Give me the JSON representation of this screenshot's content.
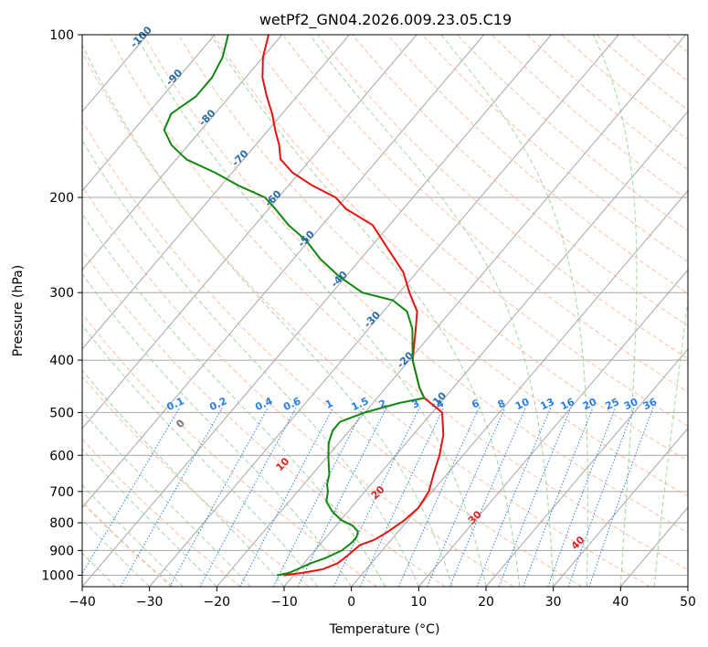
{
  "chart_data": {
    "type": "line",
    "subtype": "skew-T log-P diagram",
    "title": "wetPf2_GN04.2026.009.23.05.C19",
    "xlabel": "Temperature (°C)",
    "ylabel": "Pressure (hPa)",
    "xlim": [
      -40,
      50
    ],
    "ylim_hpa": [
      1050,
      100
    ],
    "x_ticks": [
      -40,
      -30,
      -20,
      -10,
      0,
      10,
      20,
      30,
      40,
      50
    ],
    "x_tick_labels": [
      "−40",
      "−30",
      "−20",
      "−10",
      "0",
      "10",
      "20",
      "30",
      "40",
      "50"
    ],
    "y_ticks": [
      100,
      200,
      300,
      400,
      500,
      600,
      700,
      800,
      900,
      1000
    ],
    "y_tick_labels": [
      "100",
      "200",
      "300",
      "400",
      "500",
      "600",
      "700",
      "800",
      "900",
      "1000"
    ],
    "grid": true,
    "colors": {
      "temperature": "#e8110f",
      "dewpoint": "#118811",
      "isotherms": "#a6a6a6",
      "dry_adiabats": "#f7a582",
      "moist_adiabats": "#8fca8f",
      "mixing_ratio": "#2a7fe0",
      "temp_label": "#2a6ea8",
      "dryad_label": "#d62728",
      "dryad_zero_label": "#777777"
    },
    "series": [
      {
        "name": "Temperature",
        "color": "#e8110f",
        "points": [
          [
            -11.5,
            1000
          ],
          [
            -9.0,
            990
          ],
          [
            -6.5,
            975
          ],
          [
            -5.0,
            950
          ],
          [
            -4.5,
            920
          ],
          [
            -4.0,
            880
          ],
          [
            -2.5,
            860
          ],
          [
            -1.5,
            830
          ],
          [
            -0.5,
            790
          ],
          [
            0.0,
            750
          ],
          [
            -0.5,
            700
          ],
          [
            -2.0,
            650
          ],
          [
            -3.5,
            600
          ],
          [
            -5.5,
            550
          ],
          [
            -8.5,
            500
          ],
          [
            -13.0,
            470
          ],
          [
            -15.0,
            450
          ],
          [
            -19.5,
            400
          ],
          [
            -23.0,
            350
          ],
          [
            -25.0,
            325
          ],
          [
            -28.5,
            300
          ],
          [
            -32.0,
            275
          ],
          [
            -37.0,
            250
          ],
          [
            -42.5,
            225
          ],
          [
            -48.5,
            210
          ],
          [
            -51.5,
            200
          ],
          [
            -56.5,
            190
          ],
          [
            -61.0,
            180
          ],
          [
            -64.5,
            170
          ],
          [
            -66.5,
            160
          ],
          [
            -69.0,
            150
          ],
          [
            -71.5,
            140
          ],
          [
            -74.5,
            130
          ],
          [
            -77.5,
            120
          ],
          [
            -80.0,
            110
          ],
          [
            -82.0,
            100
          ]
        ]
      },
      {
        "name": "Dewpoint",
        "color": "#118811",
        "points": [
          [
            -12.5,
            1000
          ],
          [
            -11.0,
            990
          ],
          [
            -10.0,
            970
          ],
          [
            -9.0,
            950
          ],
          [
            -7.5,
            930
          ],
          [
            -6.0,
            900
          ],
          [
            -5.5,
            870
          ],
          [
            -5.5,
            850
          ],
          [
            -6.0,
            830
          ],
          [
            -7.5,
            810
          ],
          [
            -10.0,
            790
          ],
          [
            -12.5,
            760
          ],
          [
            -14.5,
            730
          ],
          [
            -15.5,
            700
          ],
          [
            -16.5,
            680
          ],
          [
            -17.5,
            650
          ],
          [
            -18.5,
            630
          ],
          [
            -20.0,
            600
          ],
          [
            -21.5,
            570
          ],
          [
            -22.5,
            540
          ],
          [
            -22.5,
            520
          ],
          [
            -20.0,
            500
          ],
          [
            -16.0,
            480
          ],
          [
            -13.0,
            470
          ],
          [
            -15.0,
            450
          ],
          [
            -19.5,
            400
          ],
          [
            -23.5,
            350
          ],
          [
            -26.5,
            325
          ],
          [
            -30.0,
            310
          ],
          [
            -35.5,
            300
          ],
          [
            -41.0,
            280
          ],
          [
            -46.0,
            260
          ],
          [
            -50.5,
            240
          ],
          [
            -55.0,
            225
          ],
          [
            -59.0,
            210
          ],
          [
            -62.0,
            200
          ],
          [
            -67.5,
            190
          ],
          [
            -72.5,
            180
          ],
          [
            -78.5,
            170
          ],
          [
            -82.5,
            160
          ],
          [
            -85.5,
            150
          ],
          [
            -86.5,
            140
          ],
          [
            -85.0,
            130
          ],
          [
            -85.0,
            120
          ],
          [
            -86.0,
            110
          ],
          [
            -88.0,
            100
          ]
        ]
      }
    ],
    "isotherm_labels": [
      {
        "temp": -100,
        "text": "-100"
      },
      {
        "temp": -90,
        "text": "-90"
      },
      {
        "temp": -80,
        "text": "-80"
      },
      {
        "temp": -70,
        "text": "-70"
      },
      {
        "temp": -60,
        "text": "-60"
      },
      {
        "temp": -50,
        "text": "-50"
      },
      {
        "temp": -40,
        "text": "-40"
      },
      {
        "temp": -30,
        "text": "-30"
      },
      {
        "temp": -20,
        "text": "-20"
      },
      {
        "temp": -10,
        "text": "-10"
      }
    ],
    "mixing_ratio_labels": [
      "0.1",
      "0.2",
      "0.4",
      "0.6",
      "1",
      "1.5",
      "2",
      "3",
      "4",
      "6",
      "8",
      "10",
      "13",
      "16",
      "20",
      "25",
      "30",
      "36"
    ],
    "dry_adiabat_labels": [
      {
        "theta_c": 0,
        "text": "0"
      },
      {
        "theta_c": 10,
        "text": "10"
      },
      {
        "theta_c": 20,
        "text": "20"
      },
      {
        "theta_c": 30,
        "text": "30"
      },
      {
        "theta_c": 40,
        "text": "40"
      }
    ]
  }
}
